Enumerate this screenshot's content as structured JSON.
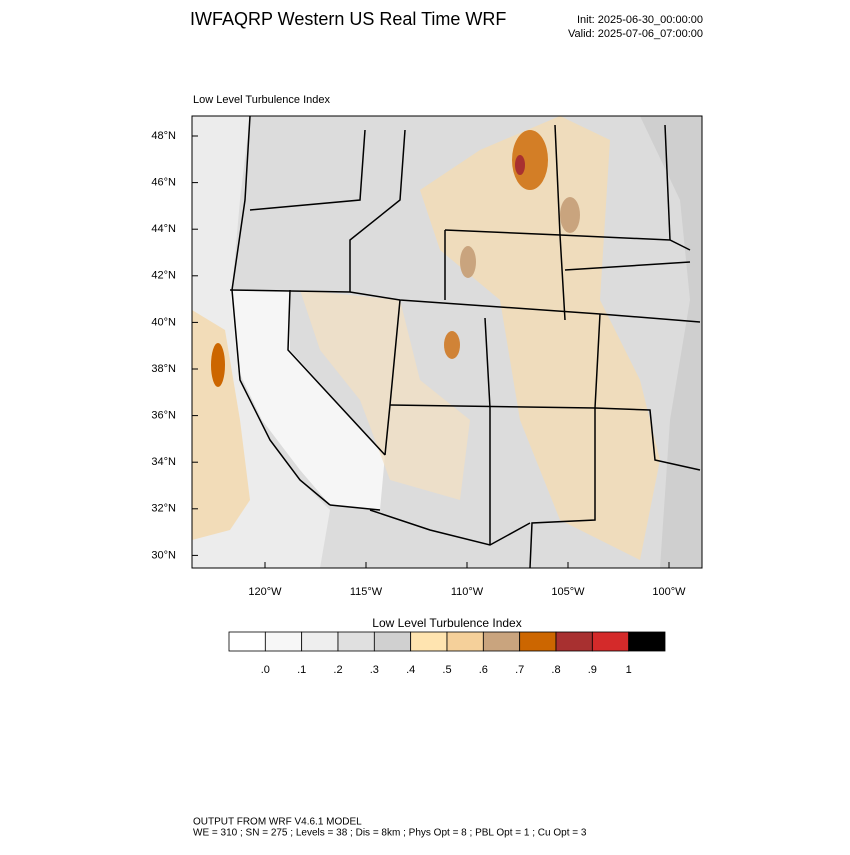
{
  "header": {
    "title": "IWFAQRP Western US Real Time WRF",
    "init": "Init: 2025-06-30_00:00:00",
    "valid": "Valid: 2025-07-06_07:00:00"
  },
  "map": {
    "subtitle": "Low Level Turbulence Index",
    "lat_labels": [
      "48°N",
      "46°N",
      "44°N",
      "42°N",
      "40°N",
      "38°N",
      "36°N",
      "34°N",
      "32°N",
      "30°N"
    ],
    "lon_labels": [
      "120°W",
      "115°W",
      "110°W",
      "105°W",
      "100°W"
    ]
  },
  "colorbar": {
    "title": "Low Level Turbulence Index",
    "colors": [
      "#ffffff",
      "#f7f7f7",
      "#eeeeee",
      "#e0e0e0",
      "#d0d0d0",
      "#ffe4b0",
      "#f5d09a",
      "#c9a47e",
      "#cc6600",
      "#a83030",
      "#d42a2a",
      "#000000"
    ],
    "labels": [
      ".0",
      ".1",
      ".2",
      ".3",
      ".4",
      ".5",
      ".6",
      ".7",
      ".8",
      ".9",
      "1"
    ]
  },
  "footer": {
    "line1": "OUTPUT FROM WRF V4.6.1 MODEL",
    "line2": "WE = 310 ; SN = 275 ; Levels = 38 ; Dis = 8km ; Phys Opt = 8 ; PBL Opt = 1 ; Cu Opt = 3"
  }
}
